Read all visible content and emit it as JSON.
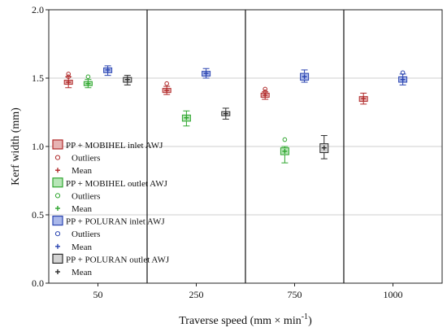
{
  "chart_data": {
    "type": "box",
    "xlabel": "Traverse speed (mm × min",
    "xlabel_sup": "-1",
    "xlabel_tail": ")",
    "ylabel": "Kerf width (mm)",
    "ylim": [
      0.0,
      2.0
    ],
    "yticks": [
      "0.0",
      "0.5",
      "1.0",
      "1.5",
      "2.0"
    ],
    "categories": [
      "50",
      "250",
      "750",
      "1000"
    ],
    "grid": "horizontal",
    "legend_position": "left",
    "colors": {
      "red": "#b02a2a",
      "green": "#2ea52e",
      "blue": "#2a44b0",
      "gray": "#2b2b2b",
      "box_red_fill": "#e7b3b3",
      "box_green_fill": "#b7e6b7",
      "box_blue_fill": "#aab8ea",
      "box_gray_fill": "#d3d3d3"
    },
    "series": [
      {
        "name": "PP + MOBIHEL inlet AWJ",
        "color": "red",
        "points": [
          {
            "category": "50",
            "mean": 1.47,
            "q1": 1.455,
            "q3": 1.485,
            "min": 1.43,
            "max": 1.51,
            "outliers": [
              1.51,
              1.53
            ]
          },
          {
            "category": "250",
            "mean": 1.41,
            "q1": 1.395,
            "q3": 1.425,
            "min": 1.38,
            "max": 1.44,
            "outliers": [
              1.46
            ]
          },
          {
            "category": "750",
            "mean": 1.375,
            "q1": 1.36,
            "q3": 1.39,
            "min": 1.345,
            "max": 1.4,
            "outliers": [
              1.4,
              1.42
            ]
          },
          {
            "category": "1000",
            "mean": 1.35,
            "q1": 1.33,
            "q3": 1.365,
            "min": 1.31,
            "max": 1.39,
            "outliers": []
          }
        ]
      },
      {
        "name": "PP + MOBIHEL outlet AWJ",
        "color": "green",
        "points": [
          {
            "category": "50",
            "mean": 1.46,
            "q1": 1.445,
            "q3": 1.475,
            "min": 1.43,
            "max": 1.49,
            "outliers": [
              1.51
            ]
          },
          {
            "category": "250",
            "mean": 1.21,
            "q1": 1.185,
            "q3": 1.23,
            "min": 1.15,
            "max": 1.26,
            "outliers": []
          },
          {
            "category": "750",
            "mean": 0.965,
            "q1": 0.94,
            "q3": 0.99,
            "min": 0.88,
            "max": 1.0,
            "outliers": [
              1.05
            ]
          }
        ]
      },
      {
        "name": "PP + POLURAN inlet AWJ",
        "color": "blue",
        "points": [
          {
            "category": "50",
            "mean": 1.56,
            "q1": 1.54,
            "q3": 1.575,
            "min": 1.52,
            "max": 1.59,
            "outliers": []
          },
          {
            "category": "250",
            "mean": 1.535,
            "q1": 1.515,
            "q3": 1.55,
            "min": 1.5,
            "max": 1.57,
            "outliers": []
          },
          {
            "category": "750",
            "mean": 1.51,
            "q1": 1.485,
            "q3": 1.535,
            "min": 1.47,
            "max": 1.56,
            "outliers": []
          },
          {
            "category": "1000",
            "mean": 1.49,
            "q1": 1.47,
            "q3": 1.51,
            "min": 1.45,
            "max": 1.53,
            "outliers": [
              1.54
            ]
          }
        ]
      },
      {
        "name": "PP + POLURAN outlet AWJ",
        "color": "gray",
        "points": [
          {
            "category": "50",
            "mean": 1.49,
            "q1": 1.47,
            "q3": 1.505,
            "min": 1.45,
            "max": 1.52,
            "outliers": []
          },
          {
            "category": "250",
            "mean": 1.24,
            "q1": 1.225,
            "q3": 1.255,
            "min": 1.2,
            "max": 1.28,
            "outliers": []
          },
          {
            "category": "750",
            "mean": 0.99,
            "q1": 0.955,
            "q3": 1.02,
            "min": 0.91,
            "max": 1.08,
            "outliers": []
          }
        ]
      }
    ],
    "legend": [
      {
        "label": "PP + MOBIHEL inlet AWJ",
        "kind": "box",
        "color": "red"
      },
      {
        "label": "Outliers",
        "kind": "outlier",
        "color": "red"
      },
      {
        "label": "Mean",
        "kind": "mean",
        "color": "red"
      },
      {
        "label": "PP + MOBIHEL outlet AWJ",
        "kind": "box",
        "color": "green"
      },
      {
        "label": "Outliers",
        "kind": "outlier",
        "color": "green"
      },
      {
        "label": "Mean",
        "kind": "mean",
        "color": "green"
      },
      {
        "label": "PP + POLURAN inlet AWJ",
        "kind": "box",
        "color": "blue"
      },
      {
        "label": "Outliers",
        "kind": "outlier",
        "color": "blue"
      },
      {
        "label": "Mean",
        "kind": "mean",
        "color": "blue"
      },
      {
        "label": "PP + POLURAN outlet AWJ",
        "kind": "box",
        "color": "gray"
      },
      {
        "label": "Mean",
        "kind": "mean",
        "color": "gray"
      }
    ]
  }
}
